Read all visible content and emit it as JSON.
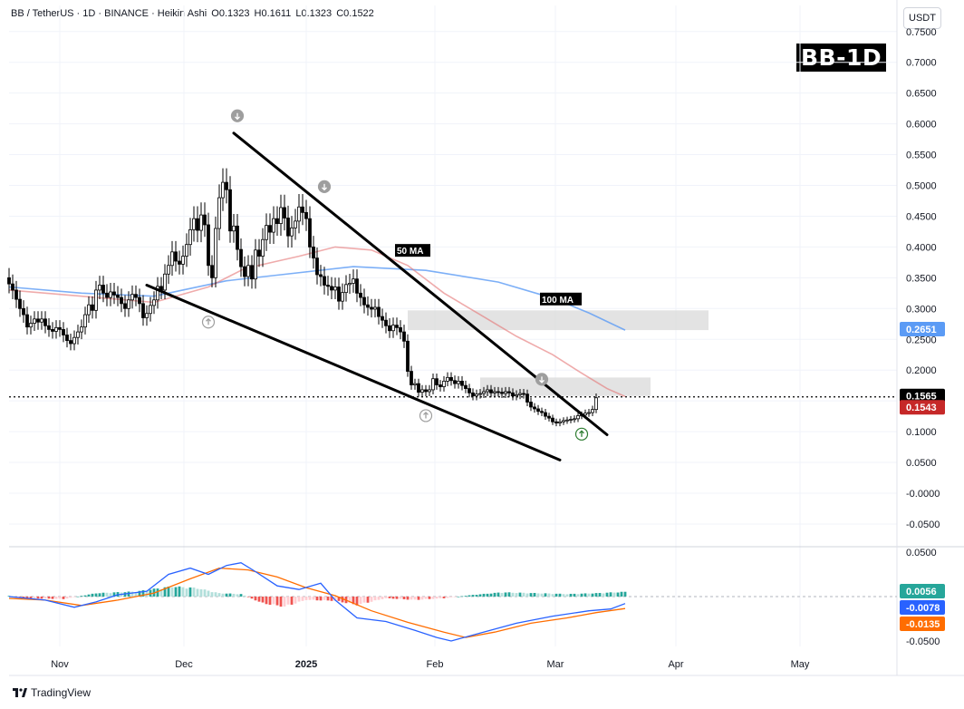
{
  "header": {
    "symbol": "BB / TetherUS · 1D · BINANCE · Heikin Ashi",
    "open": "O0.1323",
    "high": "H0.1611",
    "low": "L0.1323",
    "close": "C0.1522"
  },
  "currency_button": "USDT",
  "badge": "BB-1D",
  "footer": {
    "brand": "TradingView"
  },
  "colors": {
    "bull": "#26a69a",
    "bear": "#ef5350",
    "ma50": "#e57373",
    "ma100": "#5b9bf5",
    "macd": "#2962ff",
    "signal": "#ff6d00"
  },
  "chart_data": [
    {
      "type": "candlestick",
      "title": "BB / TetherUS · 1D · BINANCE · Heikin Ashi",
      "ylim": [
        -0.07,
        0.77
      ],
      "yticks": [
        "0.7500",
        "0.7000",
        "0.6500",
        "0.6000",
        "0.5500",
        "0.5000",
        "0.4500",
        "0.4000",
        "0.3500",
        "0.3000",
        "0.2500",
        "0.2000",
        "0.1500",
        "0.1000",
        "0.0500",
        "-0.0000",
        "-0.0500"
      ],
      "xticks": [
        "Nov",
        "Dec",
        "2025",
        "Feb",
        "Mar",
        "Apr",
        "May"
      ],
      "current_price": 0.1565,
      "price_labels": [
        {
          "text": "0.1565",
          "value": 0.1565,
          "color": "#000000"
        },
        {
          "text": "0.2651",
          "value": 0.2651,
          "color": "#5b9bf5"
        },
        {
          "text": "0.1543",
          "value": 0.1543,
          "color": "#c62828"
        }
      ],
      "ma_labels": [
        {
          "text": "50 MA",
          "day": 107,
          "value": 0.393
        },
        {
          "text": "100 MA",
          "day": 147,
          "value": 0.314
        }
      ],
      "close_start": 0.35,
      "closes": [
        0.34,
        0.33,
        0.315,
        0.3,
        0.29,
        0.27,
        0.276,
        0.283,
        0.278,
        0.283,
        0.272,
        0.266,
        0.263,
        0.269,
        0.266,
        0.257,
        0.248,
        0.243,
        0.253,
        0.262,
        0.27,
        0.29,
        0.306,
        0.297,
        0.33,
        0.338,
        0.325,
        0.318,
        0.327,
        0.322,
        0.318,
        0.308,
        0.3,
        0.314,
        0.323,
        0.318,
        0.308,
        0.285,
        0.292,
        0.305,
        0.314,
        0.336,
        0.33,
        0.356,
        0.37,
        0.392,
        0.377,
        0.372,
        0.385,
        0.404,
        0.428,
        0.446,
        0.427,
        0.452,
        0.436,
        0.37,
        0.35,
        0.43,
        0.48,
        0.505,
        0.493,
        0.426,
        0.434,
        0.396,
        0.368,
        0.352,
        0.37,
        0.348,
        0.395,
        0.385,
        0.412,
        0.435,
        0.424,
        0.446,
        0.438,
        0.464,
        0.447,
        0.418,
        0.431,
        0.442,
        0.465,
        0.456,
        0.446,
        0.4,
        0.382,
        0.355,
        0.352,
        0.338,
        0.336,
        0.33,
        0.335,
        0.312,
        0.326,
        0.339,
        0.341,
        0.348,
        0.325,
        0.318,
        0.306,
        0.302,
        0.299,
        0.302,
        0.287,
        0.281,
        0.272,
        0.264,
        0.273,
        0.269,
        0.262,
        0.247,
        0.198,
        0.176,
        0.178,
        0.164,
        0.168,
        0.165,
        0.168,
        0.186,
        0.176,
        0.173,
        0.182,
        0.188,
        0.183,
        0.178,
        0.182,
        0.175,
        0.17,
        0.163,
        0.158,
        0.161,
        0.162,
        0.165,
        0.168,
        0.163,
        0.165,
        0.164,
        0.162,
        0.165,
        0.163,
        0.158,
        0.16,
        0.162,
        0.161,
        0.148,
        0.14,
        0.137,
        0.133,
        0.131,
        0.125,
        0.122,
        0.116,
        0.114,
        0.116,
        0.118,
        0.119,
        0.12,
        0.121,
        0.126,
        0.127,
        0.13,
        0.131,
        0.136,
        0.155
      ],
      "ma50": [
        [
          0,
          0.33
        ],
        [
          20,
          0.32
        ],
        [
          40,
          0.31
        ],
        [
          55,
          0.335
        ],
        [
          65,
          0.365
        ],
        [
          80,
          0.385
        ],
        [
          90,
          0.4
        ],
        [
          100,
          0.395
        ],
        [
          110,
          0.37
        ],
        [
          120,
          0.325
        ],
        [
          130,
          0.29
        ],
        [
          140,
          0.255
        ],
        [
          150,
          0.225
        ],
        [
          158,
          0.195
        ],
        [
          165,
          0.17
        ],
        [
          170,
          0.157
        ]
      ],
      "ma100": [
        [
          0,
          0.335
        ],
        [
          20,
          0.325
        ],
        [
          40,
          0.32
        ],
        [
          60,
          0.345
        ],
        [
          75,
          0.355
        ],
        [
          95,
          0.368
        ],
        [
          115,
          0.362
        ],
        [
          135,
          0.343
        ],
        [
          150,
          0.317
        ],
        [
          160,
          0.293
        ],
        [
          170,
          0.265
        ]
      ],
      "trendlines": [
        {
          "name": "upper",
          "from": [
            62,
            0.585
          ],
          "to": [
            165,
            0.095
          ]
        },
        {
          "name": "lower",
          "from": [
            38,
            0.338
          ],
          "to": [
            152,
            0.054
          ]
        }
      ],
      "zones": [
        {
          "name": "upper-resistance",
          "from_day": 110,
          "to_day": 193,
          "low": 0.265,
          "high": 0.297
        },
        {
          "name": "lower-resistance",
          "from_day": 130,
          "to_day": 177,
          "low": 0.158,
          "high": 0.188
        }
      ],
      "signals": [
        {
          "type": "down",
          "day": 63,
          "value": 0.613
        },
        {
          "type": "down",
          "day": 87,
          "value": 0.498
        },
        {
          "type": "up",
          "day": 55,
          "value": 0.278
        },
        {
          "type": "up",
          "day": 115,
          "value": 0.126
        },
        {
          "type": "down",
          "day": 147,
          "value": 0.185
        },
        {
          "type": "up-green",
          "day": 158,
          "value": 0.096
        }
      ]
    },
    {
      "type": "macd",
      "ylim": [
        -0.058,
        0.062
      ],
      "yticks": [
        "0.0500",
        "-0.0500"
      ],
      "value_labels": [
        {
          "text": "0.0056",
          "value": 0.0056,
          "color": "#26a69a"
        },
        {
          "text": "-0.0078",
          "value": -0.0078,
          "color": "#2962ff"
        },
        {
          "text": "-0.0135",
          "value": -0.0135,
          "color": "#ff6d00"
        }
      ],
      "macd_line": [
        [
          0,
          0.0
        ],
        [
          10,
          -0.004
        ],
        [
          18,
          -0.012
        ],
        [
          24,
          -0.006
        ],
        [
          30,
          0.002
        ],
        [
          38,
          0.006
        ],
        [
          44,
          0.025
        ],
        [
          50,
          0.032
        ],
        [
          55,
          0.025
        ],
        [
          60,
          0.035
        ],
        [
          64,
          0.038
        ],
        [
          68,
          0.028
        ],
        [
          74,
          0.012
        ],
        [
          80,
          0.008
        ],
        [
          86,
          0.015
        ],
        [
          90,
          -0.004
        ],
        [
          96,
          -0.024
        ],
        [
          104,
          -0.028
        ],
        [
          112,
          -0.038
        ],
        [
          118,
          -0.046
        ],
        [
          122,
          -0.05
        ],
        [
          130,
          -0.041
        ],
        [
          140,
          -0.03
        ],
        [
          150,
          -0.022
        ],
        [
          160,
          -0.016
        ],
        [
          166,
          -0.014
        ],
        [
          170,
          -0.0078
        ]
      ],
      "signal_line": [
        [
          0,
          -0.002
        ],
        [
          10,
          -0.004
        ],
        [
          20,
          -0.01
        ],
        [
          30,
          -0.004
        ],
        [
          40,
          0.004
        ],
        [
          50,
          0.02
        ],
        [
          58,
          0.032
        ],
        [
          66,
          0.03
        ],
        [
          74,
          0.022
        ],
        [
          82,
          0.01
        ],
        [
          90,
          0.001
        ],
        [
          100,
          -0.016
        ],
        [
          110,
          -0.029
        ],
        [
          120,
          -0.04
        ],
        [
          126,
          -0.046
        ],
        [
          134,
          -0.04
        ],
        [
          144,
          -0.03
        ],
        [
          154,
          -0.024
        ],
        [
          162,
          -0.018
        ],
        [
          170,
          -0.0135
        ]
      ],
      "histogram_shape": [
        [
          0,
          0.001
        ],
        [
          5,
          -0.002
        ],
        [
          15,
          -0.003
        ],
        [
          24,
          0.004
        ],
        [
          35,
          0.006
        ],
        [
          45,
          0.012
        ],
        [
          52,
          0.01
        ],
        [
          58,
          0.004
        ],
        [
          64,
          0.003
        ],
        [
          70,
          -0.008
        ],
        [
          76,
          -0.012
        ],
        [
          82,
          -0.004
        ],
        [
          90,
          -0.005
        ],
        [
          96,
          -0.01
        ],
        [
          104,
          -0.002
        ],
        [
          112,
          -0.004
        ],
        [
          120,
          -0.002
        ],
        [
          128,
          0.002
        ],
        [
          136,
          0.005
        ],
        [
          146,
          0.004
        ],
        [
          154,
          0.003
        ],
        [
          162,
          0.004
        ],
        [
          170,
          0.0056
        ]
      ]
    }
  ]
}
